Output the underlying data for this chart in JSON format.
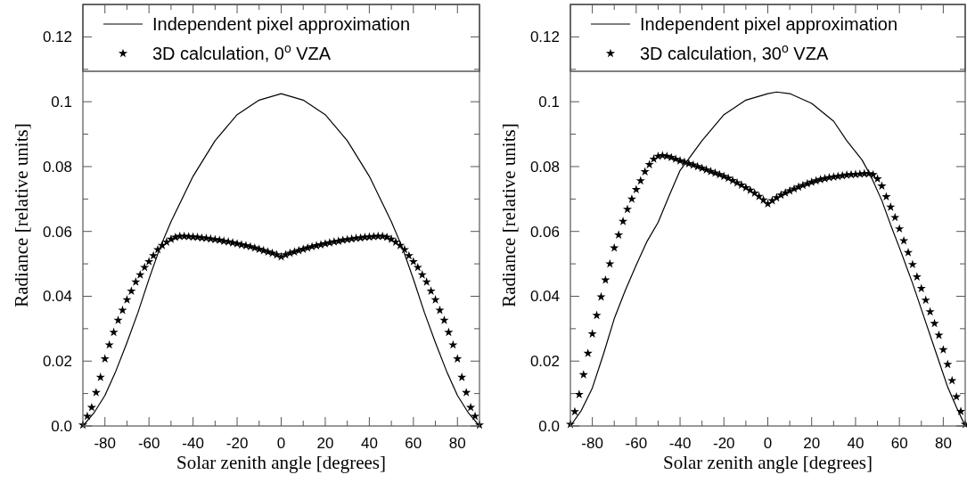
{
  "chart_data": [
    {
      "type": "line",
      "xlabel": "Solar zenith angle [degrees]",
      "ylabel": "Radiance [relative units]",
      "xlim": [
        -90,
        90
      ],
      "ylim": [
        0,
        0.13
      ],
      "xticks": [
        -80,
        {
          "value": -70,
          "label": null
        },
        -60,
        {
          "value": -50,
          "label": null
        },
        -40,
        {
          "value": -30,
          "label": null
        },
        -20,
        {
          "value": -10,
          "label": null
        },
        0,
        {
          "value": 10,
          "label": null
        },
        20,
        {
          "value": 30,
          "label": null
        },
        40,
        {
          "value": 50,
          "label": null
        },
        60,
        {
          "value": 70,
          "label": null
        },
        80
      ],
      "yticks": [
        {
          "value": 0,
          "label": "0.0"
        },
        {
          "value": 0.01,
          "label": null
        },
        0.02,
        {
          "value": 0.03,
          "label": null
        },
        0.04,
        {
          "value": 0.05,
          "label": null
        },
        0.06,
        {
          "value": 0.07,
          "label": null
        },
        0.08,
        {
          "value": 0.09,
          "label": null
        },
        {
          "value": 0.1,
          "label": "0.1"
        },
        {
          "value": 0.11,
          "label": null
        },
        0.12
      ],
      "legend": "top",
      "series": [
        {
          "name": "Independent pixel approximation",
          "color": "#000000",
          "line_style": "solid",
          "x": [
            -90,
            -85,
            -80,
            -75,
            -70,
            -65,
            -60,
            -55,
            -50,
            -45,
            -40,
            -30,
            -20,
            -10,
            0,
            10,
            20,
            30,
            40,
            45,
            50,
            55,
            60,
            65,
            70,
            75,
            80,
            85,
            90
          ],
          "values": [
            0,
            0.004,
            0.0094,
            0.017,
            0.0257,
            0.035,
            0.0453,
            0.055,
            0.063,
            0.07,
            0.077,
            0.088,
            0.096,
            0.1005,
            0.1025,
            0.1005,
            0.096,
            0.088,
            0.077,
            0.07,
            0.063,
            0.055,
            0.0453,
            0.035,
            0.0257,
            0.017,
            0.0094,
            0.004,
            0
          ]
        },
        {
          "name": "3D calculation, 0$^{o}$ VZA",
          "type": "scatter",
          "marker": "star",
          "color": "#000000",
          "x": [
            -90,
            -88,
            -86,
            -84,
            -82,
            -80,
            -78,
            -76,
            -74,
            -72,
            -70,
            -68,
            -66,
            -64,
            -62,
            -60,
            -58,
            -56,
            -54,
            -52,
            -50,
            -48,
            -46,
            -44,
            -42,
            -40,
            -38,
            -36,
            -34,
            -32,
            -30,
            -28,
            -26,
            -24,
            -22,
            -20,
            -18,
            -16,
            -14,
            -12,
            -10,
            -8,
            -6,
            -4,
            -2,
            0,
            2,
            4,
            6,
            8,
            10,
            12,
            14,
            16,
            18,
            20,
            22,
            24,
            26,
            28,
            30,
            32,
            34,
            36,
            38,
            40,
            42,
            44,
            46,
            48,
            50,
            52,
            54,
            56,
            58,
            60,
            62,
            64,
            66,
            68,
            70,
            72,
            74,
            76,
            78,
            80,
            82,
            84,
            86,
            88,
            90
          ],
          "values": [
            0.0003,
            0.003,
            0.0057,
            0.0103,
            0.015,
            0.0207,
            0.025,
            0.0289,
            0.0326,
            0.0357,
            0.0389,
            0.0416,
            0.0444,
            0.0466,
            0.0489,
            0.0507,
            0.0525,
            0.0544,
            0.0557,
            0.0567,
            0.0576,
            0.0582,
            0.0585,
            0.0585,
            0.0584,
            0.0583,
            0.0582,
            0.058,
            0.0579,
            0.0577,
            0.0575,
            0.0573,
            0.057,
            0.0568,
            0.0565,
            0.0562,
            0.0559,
            0.0556,
            0.0553,
            0.0549,
            0.0545,
            0.0541,
            0.0537,
            0.0533,
            0.0528,
            0.0522,
            0.0528,
            0.0533,
            0.0537,
            0.0541,
            0.0545,
            0.0549,
            0.0553,
            0.0556,
            0.0559,
            0.0562,
            0.0565,
            0.0568,
            0.057,
            0.0573,
            0.0575,
            0.0577,
            0.0579,
            0.058,
            0.0582,
            0.0583,
            0.0584,
            0.0585,
            0.0585,
            0.0582,
            0.0576,
            0.0567,
            0.0557,
            0.0544,
            0.0525,
            0.0507,
            0.0489,
            0.0466,
            0.0444,
            0.0416,
            0.0389,
            0.0357,
            0.0326,
            0.0289,
            0.025,
            0.0207,
            0.015,
            0.0103,
            0.0057,
            0.003,
            0.0003
          ]
        }
      ]
    },
    {
      "type": "line",
      "xlabel": "Solar zenith angle [degrees]",
      "ylabel": "Radiance [relative units]",
      "xlim": [
        -90,
        90
      ],
      "ylim": [
        0,
        0.13
      ],
      "xticks": [
        -80,
        {
          "value": -70,
          "label": null
        },
        -60,
        {
          "value": -50,
          "label": null
        },
        -40,
        {
          "value": -30,
          "label": null
        },
        -20,
        {
          "value": -10,
          "label": null
        },
        0,
        {
          "value": 10,
          "label": null
        },
        20,
        {
          "value": 30,
          "label": null
        },
        40,
        {
          "value": 50,
          "label": null
        },
        60,
        {
          "value": 70,
          "label": null
        },
        80
      ],
      "yticks": [
        {
          "value": 0,
          "label": "0.0"
        },
        {
          "value": 0.01,
          "label": null
        },
        0.02,
        {
          "value": 0.03,
          "label": null
        },
        0.04,
        {
          "value": 0.05,
          "label": null
        },
        0.06,
        {
          "value": 0.07,
          "label": null
        },
        0.08,
        {
          "value": 0.09,
          "label": null
        },
        {
          "value": 0.1,
          "label": "0.1"
        },
        {
          "value": 0.11,
          "label": null
        },
        0.12
      ],
      "legend": "top",
      "series": [
        {
          "name": "Independent pixel approximation",
          "color": "#000000",
          "line_style": "solid",
          "x": [
            -90,
            -85,
            -80,
            -75,
            -70,
            -65,
            -60,
            -55,
            -50,
            -45,
            -40,
            -30,
            -20,
            -10,
            0,
            4,
            10,
            20,
            30,
            36,
            43,
            47,
            52,
            56,
            60,
            66,
            72,
            77,
            82,
            86,
            90
          ],
          "values": [
            0,
            0.0048,
            0.0117,
            0.022,
            0.0331,
            0.0418,
            0.0496,
            0.057,
            0.0628,
            0.071,
            0.0788,
            0.088,
            0.096,
            0.1005,
            0.1025,
            0.103,
            0.1025,
            0.0995,
            0.094,
            0.088,
            0.082,
            0.077,
            0.0695,
            0.062,
            0.055,
            0.044,
            0.032,
            0.022,
            0.012,
            0.0058,
            0
          ]
        },
        {
          "name": "3D calculation, 30$^{o}$ VZA",
          "type": "scatter",
          "marker": "star",
          "color": "#000000",
          "x": [
            -90,
            -88,
            -86,
            -84,
            -82,
            -80,
            -78,
            -76,
            -74,
            -72,
            -70,
            -68,
            -66,
            -64,
            -62,
            -60,
            -58,
            -56,
            -54,
            -52,
            -50,
            -48,
            -46,
            -44,
            -42,
            -40,
            -38,
            -36,
            -34,
            -32,
            -30,
            -28,
            -26,
            -24,
            -22,
            -20,
            -18,
            -16,
            -14,
            -12,
            -10,
            -8,
            -6,
            -4,
            -2,
            0,
            2,
            4,
            6,
            8,
            10,
            12,
            14,
            16,
            18,
            20,
            22,
            24,
            26,
            28,
            30,
            32,
            34,
            36,
            38,
            40,
            42,
            44,
            46,
            48,
            50,
            52,
            54,
            56,
            58,
            60,
            62,
            64,
            66,
            68,
            70,
            72,
            74,
            76,
            78,
            80,
            82,
            84,
            86,
            88,
            90
          ],
          "values": [
            0.0005,
            0.0044,
            0.0097,
            0.0158,
            0.0224,
            0.0284,
            0.0341,
            0.0398,
            0.045,
            0.05,
            0.0549,
            0.0589,
            0.0631,
            0.0668,
            0.07,
            0.0729,
            0.0756,
            0.0784,
            0.0806,
            0.0823,
            0.0832,
            0.0834,
            0.0832,
            0.0828,
            0.0823,
            0.0818,
            0.0814,
            0.0809,
            0.0805,
            0.08,
            0.0795,
            0.079,
            0.0785,
            0.078,
            0.0775,
            0.077,
            0.0764,
            0.0757,
            0.075,
            0.0743,
            0.0735,
            0.0727,
            0.0718,
            0.0708,
            0.0697,
            0.0685,
            0.0695,
            0.0704,
            0.0712,
            0.0719,
            0.0725,
            0.0731,
            0.0737,
            0.0742,
            0.0747,
            0.0752,
            0.0756,
            0.076,
            0.0763,
            0.0766,
            0.0768,
            0.077,
            0.0772,
            0.0774,
            0.0775,
            0.0776,
            0.0777,
            0.0778,
            0.0778,
            0.0775,
            0.0762,
            0.074,
            0.0707,
            0.0675,
            0.0643,
            0.0608,
            0.0571,
            0.0535,
            0.0498,
            0.046,
            0.0424,
            0.0388,
            0.0352,
            0.0316,
            0.028,
            0.0235,
            0.019,
            0.014,
            0.009,
            0.0045,
            0.0005
          ]
        }
      ]
    }
  ]
}
